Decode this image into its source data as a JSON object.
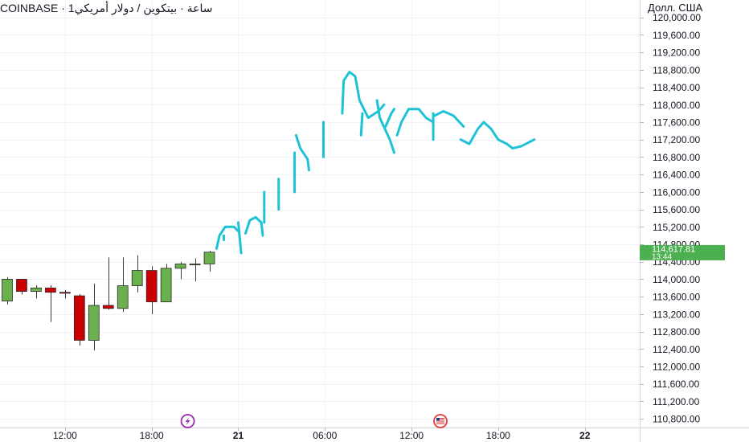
{
  "header": {
    "exchange": "COINBASE",
    "separator": "·",
    "interval": "1ساعة",
    "instrument": "بيتكوين / دولار أمريكي",
    "currency": "Долл. США"
  },
  "price_tag": {
    "value": "114,617.81",
    "countdown": "13:44",
    "color": "#4caf50"
  },
  "colors": {
    "up": "#6ab04c",
    "down": "#cc0000",
    "drawing": "#1ec2d6",
    "grid": "#f0f3fa",
    "axis_text": "#131722"
  },
  "icons": [
    "lightning-icon",
    "us-flag-icon"
  ],
  "chart_data": {
    "type": "candlestick",
    "y_axis": {
      "position": "right",
      "range": [
        110600,
        120400
      ],
      "ticks": [
        110800,
        111200,
        111600,
        112000,
        112400,
        112800,
        113200,
        113600,
        114000,
        114400,
        114800,
        115200,
        115600,
        116000,
        116400,
        116800,
        117200,
        117600,
        118000,
        118400,
        118800,
        119200,
        119600,
        120000
      ],
      "tick_labels": [
        "110,800.00",
        "111,200.00",
        "111,600.00",
        "112,000.00",
        "112,400.00",
        "112,800.00",
        "113,200.00",
        "113,600.00",
        "114,000.00",
        "114,400.00",
        "114,800.00",
        "115,200.00",
        "115,600.00",
        "116,000.00",
        "116,400.00",
        "116,800.00",
        "117,200.00",
        "117,600.00",
        "118,000.00",
        "118,400.00",
        "118,800.00",
        "119,200.00",
        "119,600.00",
        "120,000.00"
      ]
    },
    "x_axis": {
      "unit": "hours",
      "range": [
        7.5,
        51.8
      ],
      "ticks": [
        12,
        18,
        24,
        30,
        36,
        42,
        48
      ],
      "tick_labels": [
        "12:00",
        "18:00",
        "21",
        "06:00",
        "12:00",
        "18:00",
        "22"
      ]
    },
    "grid": true,
    "candles": [
      {
        "t": 8,
        "o": 113500,
        "h": 114050,
        "l": 113420,
        "c": 114000
      },
      {
        "t": 9,
        "o": 114000,
        "h": 114000,
        "l": 113650,
        "c": 113720
      },
      {
        "t": 10,
        "o": 113720,
        "h": 113860,
        "l": 113560,
        "c": 113800
      },
      {
        "t": 11,
        "o": 113800,
        "h": 113860,
        "l": 113020,
        "c": 113700
      },
      {
        "t": 12,
        "o": 113700,
        "h": 113750,
        "l": 113560,
        "c": 113680
      },
      {
        "t": 13,
        "o": 113620,
        "h": 113660,
        "l": 112480,
        "c": 112600
      },
      {
        "t": 14,
        "o": 112600,
        "h": 113900,
        "l": 112370,
        "c": 113400
      },
      {
        "t": 15,
        "o": 113400,
        "h": 114500,
        "l": 113300,
        "c": 113330
      },
      {
        "t": 16,
        "o": 113330,
        "h": 114500,
        "l": 113250,
        "c": 113850
      },
      {
        "t": 17,
        "o": 113850,
        "h": 114550,
        "l": 113700,
        "c": 114200
      },
      {
        "t": 18,
        "o": 114200,
        "h": 114300,
        "l": 113200,
        "c": 113480
      },
      {
        "t": 19,
        "o": 113480,
        "h": 114350,
        "l": 113480,
        "c": 114250
      },
      {
        "t": 20,
        "o": 114250,
        "h": 114400,
        "l": 114000,
        "c": 114350
      },
      {
        "t": 21,
        "o": 114350,
        "h": 114480,
        "l": 113950,
        "c": 114350
      },
      {
        "t": 22,
        "o": 114350,
        "h": 114650,
        "l": 114170,
        "c": 114620
      }
    ],
    "drawing": {
      "style": "freehand",
      "strokes": [
        [
          [
            22.5,
            114700
          ],
          [
            22.7,
            115000
          ],
          [
            23.1,
            115200
          ],
          [
            23.7,
            115200
          ],
          [
            24.0,
            115100
          ]
        ],
        [
          [
            23.0,
            115000
          ],
          [
            23.0,
            114900
          ]
        ],
        [
          [
            24.0,
            115300
          ],
          [
            24.2,
            114600
          ]
        ],
        [
          [
            24.5,
            115050
          ],
          [
            24.8,
            115350
          ],
          [
            25.2,
            115420
          ],
          [
            25.6,
            115300
          ],
          [
            25.7,
            115000
          ]
        ],
        [
          [
            25.8,
            115300
          ],
          [
            25.8,
            116000
          ]
        ],
        [
          [
            26.8,
            115600
          ],
          [
            26.8,
            116300
          ]
        ],
        [
          [
            27.9,
            116000
          ],
          [
            27.9,
            116900
          ]
        ],
        [
          [
            28.0,
            117300
          ],
          [
            28.3,
            117000
          ],
          [
            28.8,
            116750
          ],
          [
            28.9,
            116500
          ]
        ],
        [
          [
            29.9,
            116800
          ],
          [
            29.9,
            117600
          ]
        ],
        [
          [
            31.2,
            117800
          ],
          [
            31.3,
            118550
          ],
          [
            31.7,
            118750
          ],
          [
            32.1,
            118650
          ],
          [
            32.4,
            118100
          ],
          [
            33.0,
            117700
          ],
          [
            33.7,
            117850
          ],
          [
            34.1,
            118000
          ]
        ],
        [
          [
            32.6,
            117800
          ],
          [
            32.5,
            117300
          ]
        ],
        [
          [
            33.6,
            118100
          ],
          [
            33.8,
            117700
          ],
          [
            34.5,
            117200
          ],
          [
            34.8,
            116900
          ]
        ],
        [
          [
            34.2,
            117500
          ],
          [
            34.6,
            117800
          ],
          [
            34.8,
            117900
          ]
        ],
        [
          [
            35.0,
            117300
          ],
          [
            35.3,
            117600
          ],
          [
            35.8,
            117900
          ],
          [
            36.5,
            117900
          ],
          [
            37.0,
            117700
          ],
          [
            37.5,
            117600
          ]
        ],
        [
          [
            37.5,
            117200
          ],
          [
            37.5,
            117800
          ]
        ],
        [
          [
            37.6,
            117750
          ],
          [
            38.2,
            117850
          ],
          [
            38.9,
            117750
          ],
          [
            39.6,
            117500
          ]
        ],
        [
          [
            39.4,
            117200
          ],
          [
            40.0,
            117100
          ],
          [
            40.6,
            117450
          ],
          [
            41.0,
            117600
          ],
          [
            41.5,
            117450
          ],
          [
            42.0,
            117200
          ],
          [
            42.6,
            117100
          ],
          [
            43.0,
            117000
          ],
          [
            43.6,
            117050
          ],
          [
            44.5,
            117200
          ]
        ]
      ]
    }
  }
}
